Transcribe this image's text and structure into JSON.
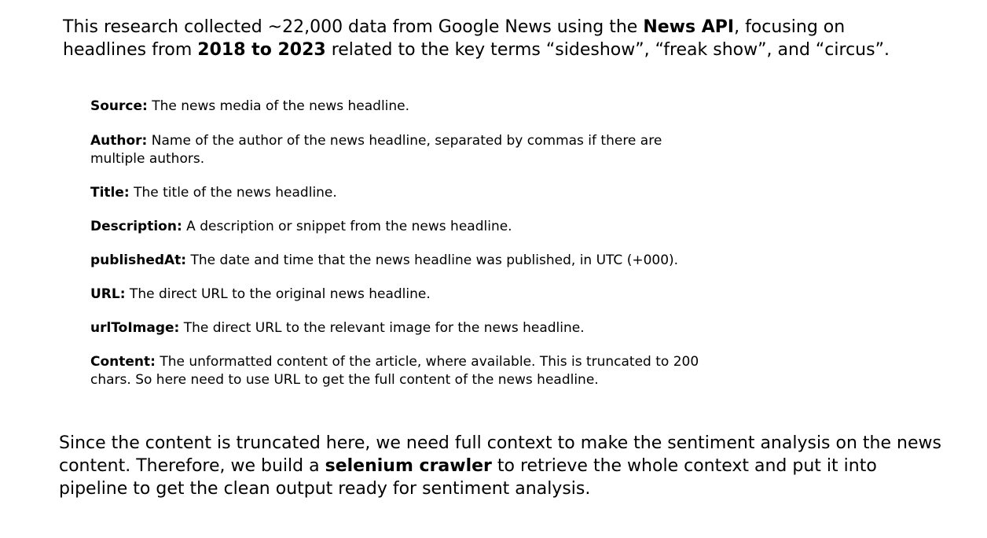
{
  "intro": {
    "part1": "This research collected ~22,000 data from Google News using the ",
    "bold1": "News API",
    "part2": ", focusing on headlines from ",
    "bold2": "2018 to 2023",
    "part3": " related to the key terms “sideshow”, “freak show”, and “circus”."
  },
  "fields": [
    {
      "name": "Source:",
      "desc": " The news media of the news headline."
    },
    {
      "name": "Author:",
      "desc": " Name of the author of the news headline, separated by commas if there are multiple authors."
    },
    {
      "name": "Title:",
      "desc": " The title of the news headline."
    },
    {
      "name": "Description:",
      "desc": " A description or snippet from the news headline."
    },
    {
      "name": "publishedAt:",
      "desc": " The date and time that the news headline was published, in UTC (+000)."
    },
    {
      "name": "URL:",
      "desc": " The direct URL to the original news headline."
    },
    {
      "name": "urlToImage:",
      "desc": " The direct URL to the relevant image for the news headline."
    },
    {
      "name": "Content:",
      "desc": " The unformatted content of the article, where available. This is truncated to 200 chars. So here need to use URL to get the full content of the news headline."
    }
  ],
  "outro": {
    "part1": "Since the content is truncated here, we need full context to make the sentiment analysis on the news content. Therefore, we build a ",
    "bold1": "selenium crawler",
    "part2": " to retrieve the whole context and put it into pipeline to get the clean output ready for sentiment analysis."
  }
}
